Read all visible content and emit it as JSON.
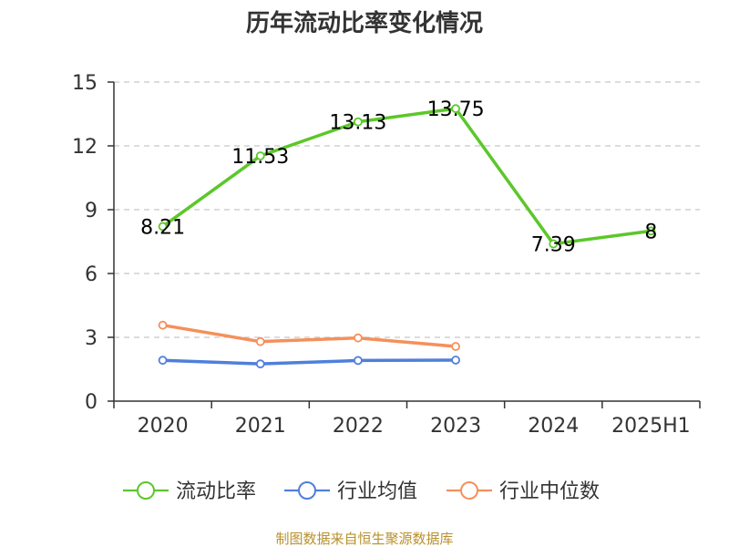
{
  "chart_data": {
    "type": "line",
    "title": "历年流动比率变化情况",
    "categories": [
      "2020",
      "2021",
      "2022",
      "2023",
      "2024",
      "2025H1"
    ],
    "ylim": [
      0,
      15
    ],
    "yticks": [
      0,
      3,
      6,
      9,
      12,
      15
    ],
    "grid": true,
    "legend_position": "bottom",
    "series": [
      {
        "name": "流动比率",
        "color": "#5cc72a",
        "values": [
          8.21,
          11.53,
          13.13,
          13.75,
          7.39,
          8
        ],
        "labels": [
          "8.21",
          "11.53",
          "13.13",
          "13.75",
          "7.39",
          "8"
        ]
      },
      {
        "name": "行业均值",
        "color": "#4f7fdc",
        "values": [
          1.92,
          1.75,
          1.91,
          1.93,
          null,
          null
        ]
      },
      {
        "name": "行业中位数",
        "color": "#f5905a",
        "values": [
          3.57,
          2.8,
          2.97,
          2.57,
          null,
          null
        ]
      }
    ]
  },
  "source_text": "制图数据来自恒生聚源数据库"
}
